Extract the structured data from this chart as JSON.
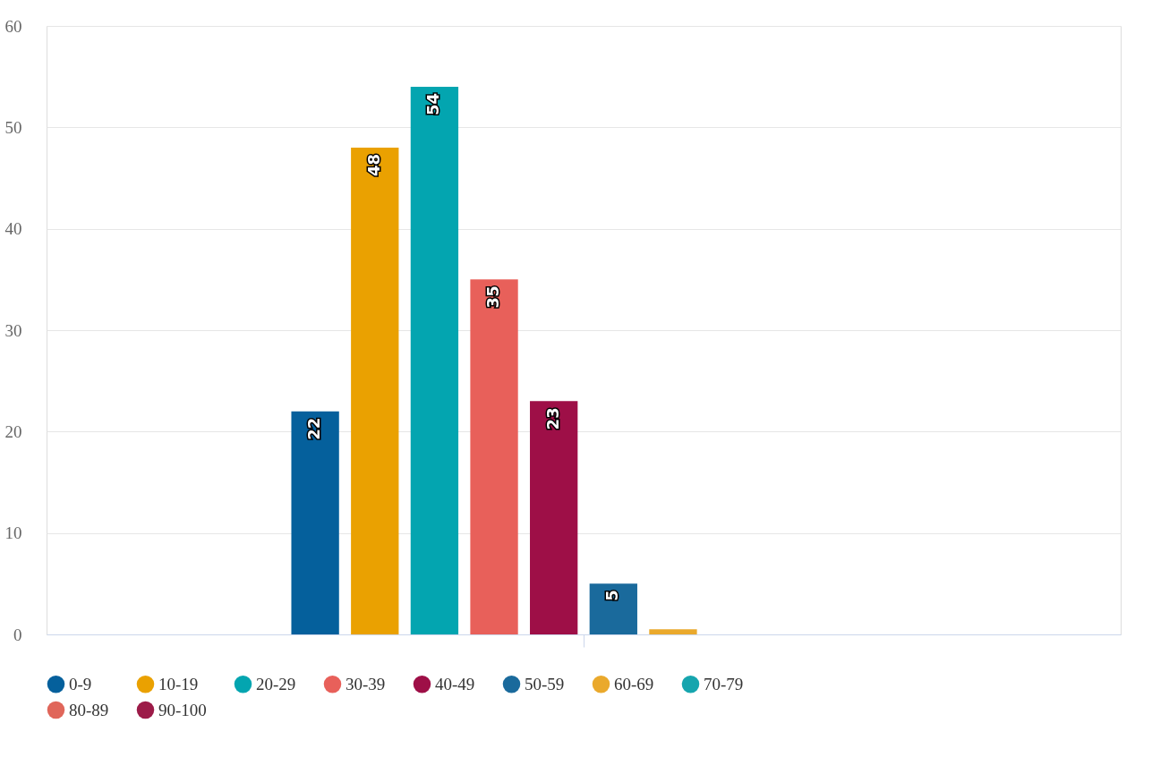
{
  "chart_data": {
    "type": "bar",
    "categories": [
      null
    ],
    "series": [
      {
        "name": "0-9",
        "color": "#05609c",
        "values": [
          22
        ],
        "value_labels": [
          "22"
        ]
      },
      {
        "name": "10-19",
        "color": "#eaa101",
        "values": [
          48
        ],
        "value_labels": [
          "48"
        ]
      },
      {
        "name": "20-29",
        "color": "#03a5b0",
        "values": [
          54
        ],
        "value_labels": [
          "54"
        ]
      },
      {
        "name": "30-39",
        "color": "#e8605a",
        "values": [
          35
        ],
        "value_labels": [
          "35"
        ]
      },
      {
        "name": "40-49",
        "color": "#9e0f47",
        "values": [
          23
        ],
        "value_labels": [
          "23"
        ]
      },
      {
        "name": "50-59",
        "color": "#1a6a9c",
        "values": [
          5
        ],
        "value_labels": [
          "5"
        ]
      },
      {
        "name": "60-69",
        "color": "#eaa92c",
        "values": [
          0.5
        ],
        "value_labels": [
          null
        ]
      },
      {
        "name": "70-79",
        "color": "#16a5ae",
        "values": [
          0
        ],
        "value_labels": [
          null
        ]
      },
      {
        "name": "80-89",
        "color": "#e0665a",
        "values": [
          0
        ],
        "value_labels": [
          null
        ]
      },
      {
        "name": "90-100",
        "color": "#9c1b48",
        "values": [
          0
        ],
        "value_labels": [
          null
        ]
      }
    ],
    "ylim": [
      0,
      60
    ],
    "yticks": [
      0,
      10,
      20,
      30,
      40,
      50,
      60
    ],
    "grid": "y",
    "legend": "bottom",
    "tick_labels": "y"
  }
}
